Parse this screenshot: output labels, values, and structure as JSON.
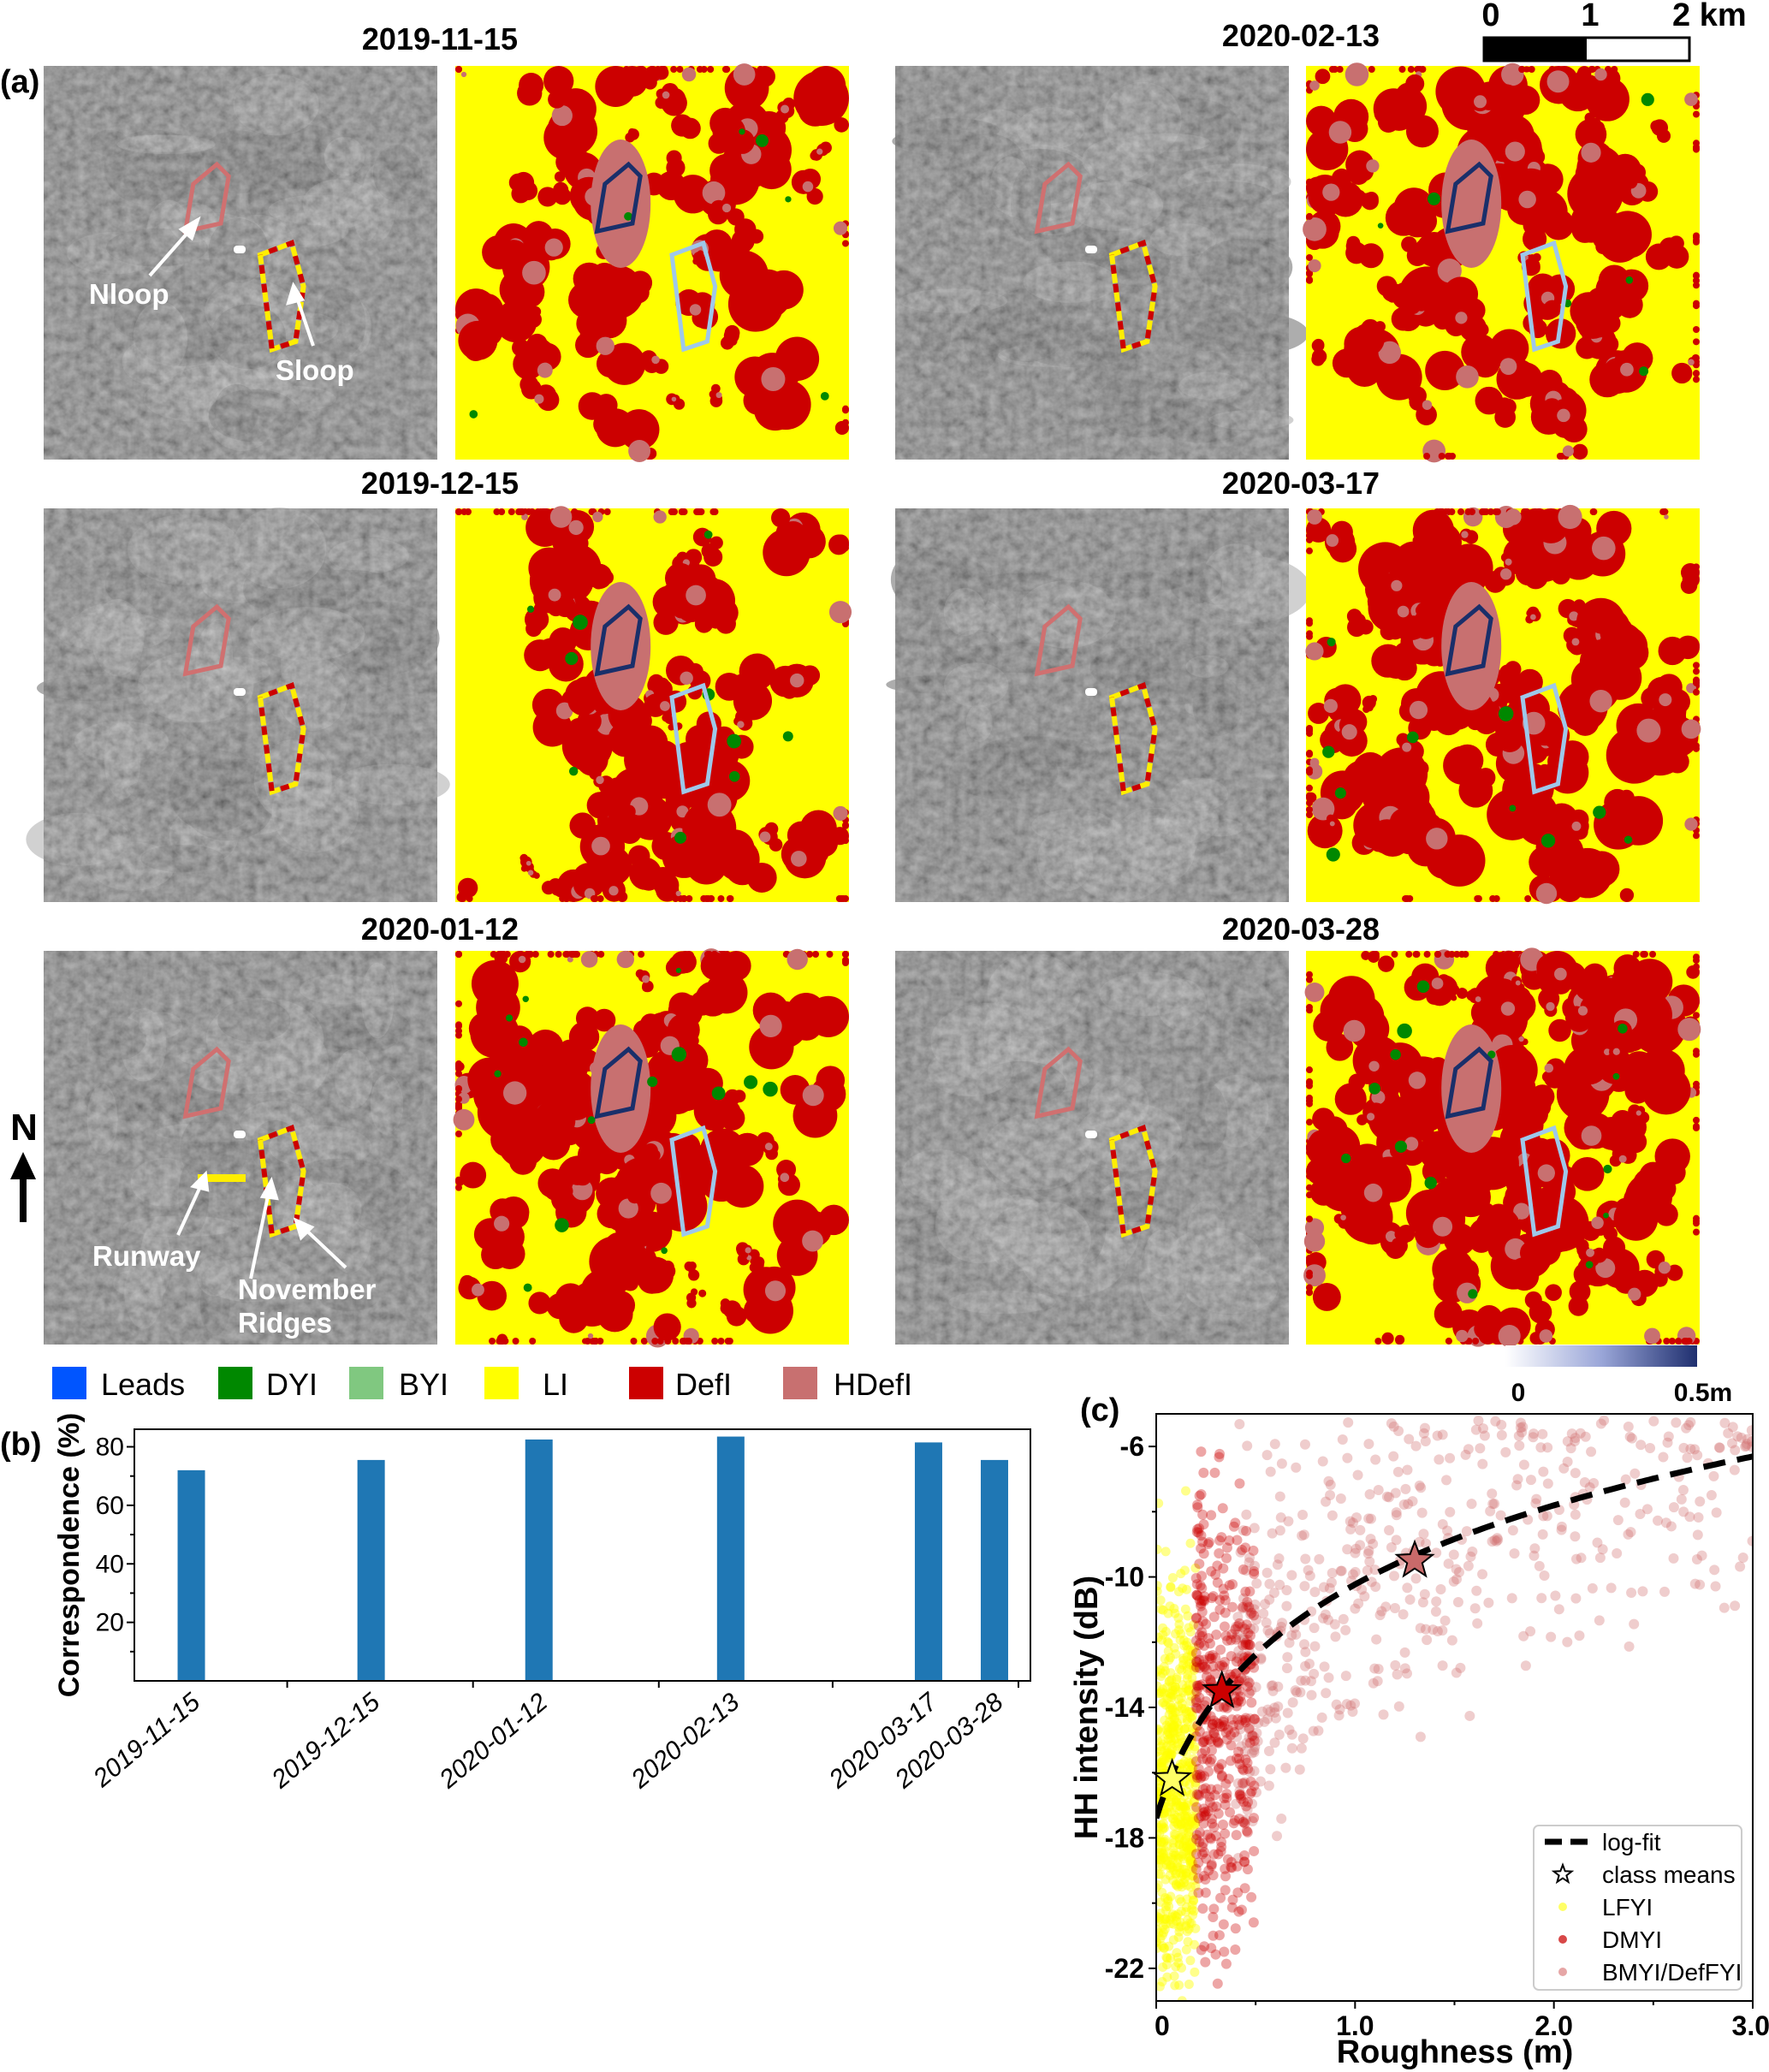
{
  "panel_a": {
    "label": "(a)",
    "dates": [
      "2019-11-15",
      "2019-12-15",
      "2020-01-12",
      "2020-02-13",
      "2020-03-17",
      "2020-03-28"
    ],
    "annotations": {
      "nloop": "Nloop",
      "sloop": "Sloop",
      "runway": "Runway",
      "november_1": "November",
      "november_2": "Ridges"
    },
    "north_label": "N",
    "scale_bar": {
      "labels": [
        "0",
        "1",
        "2 km"
      ]
    },
    "colorbar": {
      "min_label": "0",
      "max_label": "0.5m",
      "range": [
        0,
        0.5
      ],
      "color_low": "#ffffff",
      "color_high": "#1f2f6f"
    },
    "legend": [
      {
        "label": "Leads",
        "color": "#0055ff"
      },
      {
        "label": "DYI",
        "color": "#008800"
      },
      {
        "label": "BYI",
        "color": "#80c880"
      },
      {
        "label": "LI",
        "color": "#ffff00"
      },
      {
        "label": "DefI",
        "color": "#cc0000"
      },
      {
        "label": "HDefI",
        "color": "#c87070"
      }
    ]
  },
  "chart_data": [
    {
      "panel_label": "(b)",
      "type": "bar",
      "categories": [
        "2019-11-15",
        "2019-12-15",
        "2020-01-12",
        "2020-02-13",
        "2020-03-17",
        "2020-03-28"
      ],
      "day_offsets": [
        0,
        30,
        58,
        90,
        123,
        134
      ],
      "values": [
        72,
        75.5,
        82.5,
        83.5,
        81.5,
        75.5
      ],
      "ylabel": "Correspondence (%)",
      "xlabel": "",
      "ylim": [
        0,
        86
      ],
      "yticks": [
        "20",
        "40",
        "60",
        "80"
      ],
      "color": "#1f77b4"
    },
    {
      "panel_label": "(c)",
      "type": "scatter",
      "xlabel": "Roughness (m)",
      "ylabel": "HH intensity (dB)",
      "xlim": [
        0,
        3.0
      ],
      "ylim": [
        -23,
        -5
      ],
      "xticks": [
        "0",
        "1.0",
        "2.0",
        "3.0"
      ],
      "yticks": [
        "-6",
        "-10",
        "-14",
        "-18",
        "-22"
      ],
      "fit": {
        "label": "log-fit",
        "a": -10.96,
        "b": 4.0,
        "c": 0.2
      },
      "class_means_label": "class means",
      "series": [
        {
          "name": "LFYI",
          "color": "#ffff00",
          "mean": [
            0.08,
            -16.2
          ],
          "x_range": [
            0,
            0.2
          ],
          "y_range": [
            -23,
            -6
          ]
        },
        {
          "name": "DMYI",
          "color": "#cc0000",
          "mean": [
            0.33,
            -13.5
          ],
          "x_range": [
            0.2,
            0.5
          ],
          "y_range": [
            -22.5,
            -5.5
          ]
        },
        {
          "name": "BMYI/DefFYI",
          "color": "#d07070",
          "mean": [
            1.3,
            -9.5
          ],
          "x_range": [
            0.4,
            3.0
          ],
          "y_range": [
            -19.5,
            -5
          ]
        }
      ]
    }
  ]
}
